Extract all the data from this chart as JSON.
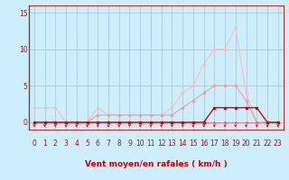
{
  "xlabel": "Vent moyen/en rafales ( km/h )",
  "background_color": "#cceeff",
  "grid_color": "#aacccc",
  "ylim": [
    -1.0,
    16.0
  ],
  "xlim": [
    -0.5,
    23.5
  ],
  "yticks": [
    0,
    5,
    10,
    15
  ],
  "xticks": [
    0,
    1,
    2,
    3,
    4,
    5,
    6,
    7,
    8,
    9,
    10,
    11,
    12,
    13,
    14,
    15,
    16,
    17,
    18,
    19,
    20,
    21,
    22,
    23
  ],
  "line_pink_x": [
    0,
    1,
    2,
    3,
    4,
    5,
    6,
    7,
    8,
    9,
    10,
    11,
    12,
    13,
    14,
    15,
    16,
    17,
    18,
    19,
    20,
    21,
    22,
    23
  ],
  "line_pink_y": [
    2,
    2,
    2,
    0,
    0,
    0,
    2,
    1,
    1,
    1,
    1,
    1,
    1,
    2,
    4,
    5,
    8,
    10,
    10,
    13,
    4,
    0,
    0,
    0
  ],
  "line_pink_color": "#ffbbbb",
  "line_med_x": [
    0,
    1,
    2,
    3,
    4,
    5,
    6,
    7,
    8,
    9,
    10,
    11,
    12,
    13,
    14,
    15,
    16,
    17,
    18,
    19,
    20,
    21,
    22,
    23
  ],
  "line_med_y": [
    0,
    0,
    0,
    0,
    0,
    0,
    1,
    1,
    1,
    1,
    1,
    1,
    1,
    1,
    2,
    3,
    4,
    5,
    5,
    5,
    3,
    0,
    0,
    0
  ],
  "line_med_color": "#ff9999",
  "line_red_x": [
    0,
    1,
    2,
    3,
    4,
    5,
    6,
    7,
    8,
    9,
    10,
    11,
    12,
    13,
    14,
    15,
    16,
    17,
    18,
    19,
    20,
    21,
    22,
    23
  ],
  "line_red_y": [
    0,
    0,
    0,
    0,
    0,
    0,
    0,
    0,
    0,
    0,
    0,
    0,
    0,
    0,
    0,
    0,
    0,
    2,
    2,
    2,
    2,
    2,
    0,
    0
  ],
  "line_red_color": "#dd0000",
  "line_thin_x": [
    0,
    1,
    2,
    3,
    4,
    5,
    6,
    7,
    8,
    9,
    10,
    11,
    12,
    13,
    14,
    15,
    16,
    17,
    18,
    19,
    20,
    21,
    22,
    23
  ],
  "line_thin_y": [
    0,
    0,
    0,
    0,
    0,
    0,
    0,
    0,
    0,
    0,
    0,
    0,
    0,
    0,
    0,
    0,
    0,
    0,
    0,
    0,
    0,
    0,
    0,
    0
  ],
  "line_thin_color": "#ff6666",
  "arrow_dirs": [
    1,
    1,
    1,
    1,
    1,
    1,
    1,
    0,
    0,
    0,
    0,
    1,
    0,
    0,
    1,
    0,
    0,
    1,
    1,
    1,
    1,
    1,
    1,
    1
  ],
  "arrow_color": "#cc0000",
  "text_color": "#cc0000",
  "axis_color": "#cc0000",
  "label_fontsize": 6.5,
  "tick_fontsize": 5.5
}
